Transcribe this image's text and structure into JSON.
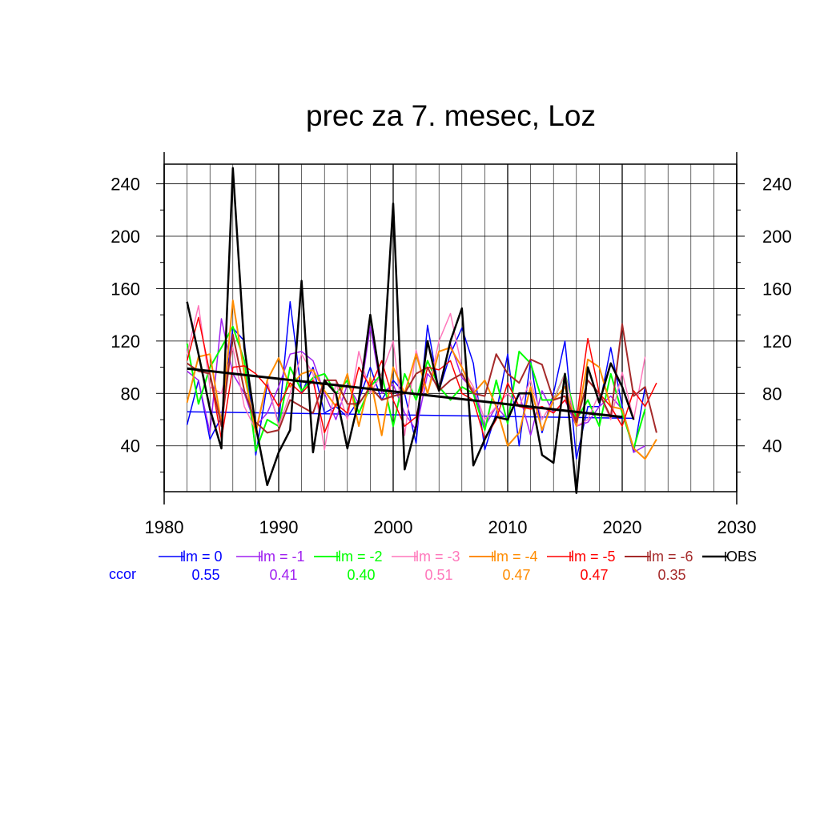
{
  "chart_data": {
    "type": "line",
    "title": "prec za 7. mesec, Loz",
    "xlabel": "",
    "ylabel": "",
    "xlim": [
      1980,
      2030
    ],
    "ylim": [
      5,
      255
    ],
    "x_ticks": [
      1980,
      1990,
      2000,
      2010,
      2020,
      2030
    ],
    "y_ticks": [
      40,
      80,
      120,
      160,
      200,
      240
    ],
    "grid": true,
    "legend_position": "bottom",
    "ccor_label": "ccor",
    "series": [
      {
        "name": "lm = 0",
        "color": "#0000ff",
        "width": 1.5,
        "ccor": "0.55",
        "x_start": 1982,
        "values": [
          56,
          90,
          45,
          62,
          130,
          120,
          33,
          87,
          57,
          150,
          80,
          100,
          65,
          70,
          62,
          75,
          100,
          75,
          90,
          80,
          42,
          132,
          82,
          110,
          130,
          103,
          37,
          65,
          110,
          40,
          105,
          50,
          80,
          120,
          30,
          70,
          70,
          115,
          70,
          35,
          85
        ],
        "trend": [
          [
            1982,
            66
          ],
          [
            2021,
            61
          ]
        ]
      },
      {
        "name": "lm = -1",
        "color": "#a020f0",
        "width": 1.5,
        "ccor": "0.41",
        "x_start": 1982,
        "values": [
          97,
          90,
          50,
          137,
          95,
          80,
          55,
          65,
          85,
          110,
          112,
          105,
          80,
          60,
          87,
          72,
          131,
          80,
          87,
          65,
          52,
          95,
          85,
          118,
          92,
          83,
          55,
          70,
          60,
          80,
          48,
          82,
          65,
          75,
          55,
          58,
          70,
          78,
          68,
          35,
          40
        ],
        "trend": null
      },
      {
        "name": "lm = -2",
        "color": "#00ff00",
        "width": 2,
        "ccor": "0.40",
        "x_start": 1982,
        "values": [
          118,
          72,
          100,
          115,
          131,
          105,
          36,
          60,
          55,
          100,
          82,
          92,
          95,
          80,
          90,
          65,
          85,
          95,
          55,
          95,
          75,
          105,
          85,
          75,
          85,
          80,
          52,
          90,
          57,
          112,
          103,
          75,
          75,
          95,
          60,
          75,
          55,
          95,
          65,
          38,
          68
        ],
        "trend": null
      },
      {
        "name": "lm = -3",
        "color": "#ff77bb",
        "width": 1.5,
        "ccor": "0.51",
        "x_start": 1982,
        "values": [
          110,
          147,
          85,
          80,
          115,
          70,
          52,
          90,
          55,
          80,
          110,
          95,
          37,
          88,
          60,
          112,
          80,
          95,
          120,
          48,
          113,
          80,
          120,
          141,
          100,
          85,
          60,
          70,
          80,
          70,
          90,
          60,
          75,
          95,
          55,
          60,
          80,
          60,
          96,
          60,
          108
        ],
        "trend": null
      },
      {
        "name": "lm = -4",
        "color": "#ff8c00",
        "width": 2,
        "ccor": "0.47",
        "x_start": 1982,
        "values": [
          73,
          108,
          110,
          57,
          151,
          95,
          50,
          90,
          107,
          85,
          95,
          98,
          82,
          70,
          95,
          55,
          92,
          48,
          100,
          80,
          110,
          80,
          112,
          115,
          100,
          80,
          90,
          70,
          40,
          50,
          85,
          52,
          75,
          85,
          55,
          106,
          100,
          70,
          68,
          38,
          30,
          45
        ],
        "trend": null
      },
      {
        "name": "lm = -5",
        "color": "#ff0000",
        "width": 1.5,
        "ccor": "0.47",
        "x_start": 1982,
        "values": [
          105,
          138,
          95,
          45,
          100,
          101,
          95,
          85,
          70,
          88,
          80,
          90,
          50,
          72,
          65,
          100,
          85,
          105,
          75,
          55,
          62,
          100,
          98,
          105,
          80,
          75,
          45,
          60,
          88,
          70,
          68,
          70,
          65,
          75,
          60,
          122,
          80,
          70,
          55,
          82,
          70,
          88
        ],
        "trend": null
      },
      {
        "name": "lm = -6",
        "color": "#a52a2a",
        "width": 2,
        "ccor": "0.35",
        "x_start": 1982,
        "values": [
          103,
          97,
          95,
          55,
          125,
          82,
          58,
          50,
          52,
          75,
          70,
          65,
          90,
          90,
          72,
          72,
          85,
          75,
          78,
          80,
          95,
          100,
          82,
          90,
          95,
          80,
          78,
          110,
          95,
          88,
          106,
          102,
          75,
          78,
          58,
          90,
          80,
          62,
          133,
          78,
          85,
          50
        ],
        "trend": null
      },
      {
        "name": "OBS",
        "color": "#000000",
        "width": 2.5,
        "ccor": "",
        "x_start": 1982,
        "values": [
          150,
          110,
          68,
          38,
          252,
          115,
          55,
          10,
          35,
          52,
          166,
          35,
          90,
          80,
          38,
          75,
          140,
          83,
          225,
          22,
          55,
          120,
          82,
          120,
          145,
          25,
          45,
          62,
          60,
          80,
          80,
          33,
          27,
          95,
          4,
          100,
          73,
          103,
          85,
          60
        ],
        "trend": [
          [
            1982,
            99
          ],
          [
            2020,
            62
          ]
        ]
      }
    ]
  }
}
